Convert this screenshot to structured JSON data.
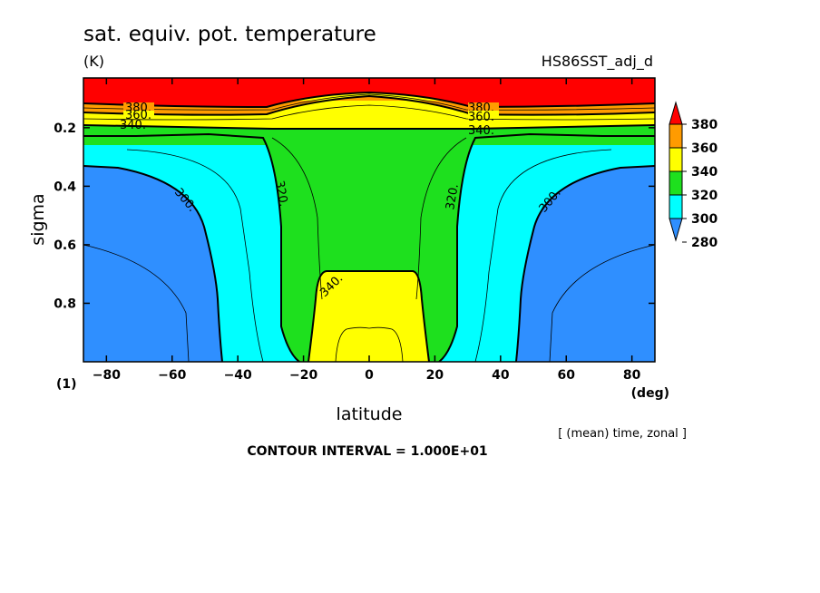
{
  "header": {
    "title": "sat. equiv. pot. temperature",
    "units": "(K)",
    "dataset": "HS86SST_adj_d"
  },
  "footer": {
    "axis_note": "[ (mean) time, zonal ]",
    "contour_interval": "CONTOUR INTERVAL = 1.000E+01",
    "y_unit": "(1)",
    "x_unit": "(deg)"
  },
  "chart_data": {
    "type": "contour",
    "xlabel": "latitude",
    "ylabel": "sigma",
    "xlim": [
      -87,
      87
    ],
    "ylim": [
      1.0,
      0.03
    ],
    "y_reversed": true,
    "x_ticks": [
      -80,
      -60,
      -40,
      -20,
      0,
      20,
      40,
      60,
      80
    ],
    "x_tick_labels": [
      "−80",
      "−60",
      "−40",
      "−20",
      "0",
      "20",
      "40",
      "60",
      "80"
    ],
    "y_ticks": [
      0.2,
      0.4,
      0.6,
      0.8
    ],
    "y_tick_labels": [
      "0.2",
      "0.4",
      "0.6",
      "0.8"
    ],
    "colorbar": {
      "levels": [
        280,
        300,
        320,
        340,
        360,
        380
      ],
      "labels": [
        "280",
        "300",
        "320",
        "340",
        "360",
        "380"
      ],
      "colors": [
        "#2f8fff",
        "#00ffff",
        "#1ee01e",
        "#ffff00",
        "#ff9b00",
        "#ff0000"
      ]
    },
    "fill_colors": {
      "below_300": "#2f8fff",
      "300_320": "#00ffff",
      "320_340": "#1ee01e",
      "340_360": "#ffff00",
      "360_380": "#ff9b00",
      "above_380": "#ff0000"
    },
    "contours": [
      {
        "level": 300,
        "label": "300.",
        "label_positions": [
          [
            -65,
            0.42
          ],
          [
            65,
            0.42
          ]
        ]
      },
      {
        "level": 320,
        "label": "320.",
        "label_positions": [
          [
            -28,
            0.42
          ],
          [
            28,
            0.42
          ]
        ]
      },
      {
        "level": 340,
        "label": "340.",
        "label_positions": [
          [
            -10,
            0.74
          ],
          [
            -70,
            0.18
          ],
          [
            38,
            0.19
          ]
        ]
      },
      {
        "level": 360,
        "label": "360.",
        "label_positions": [
          [
            -70,
            0.155
          ],
          [
            38,
            0.16
          ]
        ]
      },
      {
        "level": 380,
        "label": "380.",
        "label_positions": [
          [
            -70,
            0.13
          ],
          [
            38,
            0.13
          ]
        ]
      }
    ],
    "regions": {
      "red_top_sigma": [
        0.03,
        0.1
      ],
      "equatorial_yellow_base": {
        "lat_range": [
          -18,
          18
        ],
        "sigma_top": 0.68
      },
      "tropical_green_core": {
        "lat_range": [
          -33,
          33
        ]
      }
    }
  }
}
